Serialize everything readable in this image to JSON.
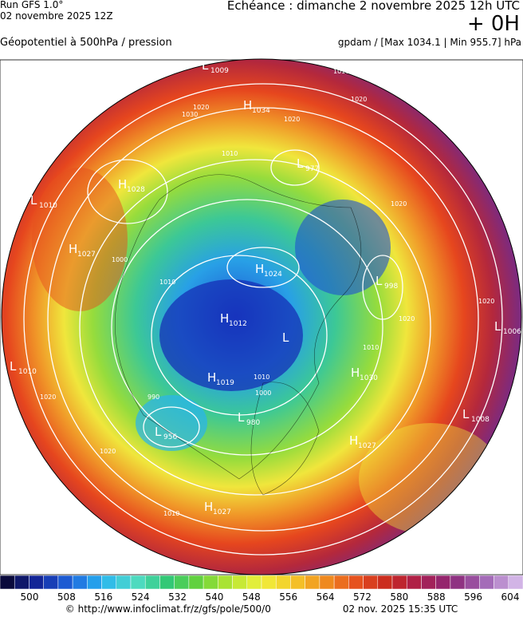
{
  "header": {
    "run": "Run GFS 1.0°",
    "date": "02 novembre 2025 12Z",
    "echeance": "Echéance : dimanche 2 novembre 2025 12h UTC",
    "offset": "+ 0H",
    "variable": "Géopotentiel à 500hPa / pression",
    "units": "gpdam / [Max 1034.1 | Min 955.7] hPa"
  },
  "pressure_centers": [
    {
      "type": "L",
      "value": 1009
    },
    {
      "type": "H",
      "value": 1034
    },
    {
      "type": "L",
      "value": 977
    },
    {
      "type": "H",
      "value": 1028
    },
    {
      "type": "L",
      "value": 1010
    },
    {
      "type": "H",
      "value": 1027
    },
    {
      "type": "H",
      "value": 1024
    },
    {
      "type": "L",
      "value": 998
    },
    {
      "type": "H",
      "value": 1012
    },
    {
      "type": "L"
    },
    {
      "type": "L",
      "value": 1006
    },
    {
      "type": "L",
      "value": 1010
    },
    {
      "type": "H",
      "value": 1030
    },
    {
      "type": "H",
      "value": 1019
    },
    {
      "type": "L",
      "value": 980
    },
    {
      "type": "L",
      "value": 956
    },
    {
      "type": "L",
      "value": 1008
    },
    {
      "type": "H",
      "value": 1027
    },
    {
      "type": "H",
      "value": 1027
    }
  ],
  "contour_labels": [
    1010,
    1020,
    1030,
    1020,
    1020,
    1010,
    1020,
    1000,
    1010,
    990,
    1000,
    1010,
    1020,
    1020,
    1010,
    1020,
    1010,
    1020
  ],
  "colorbar": {
    "ticks": [
      500,
      508,
      516,
      524,
      532,
      540,
      548,
      556,
      564,
      572,
      580,
      588,
      596,
      604
    ],
    "colors": [
      "#0a0a3c",
      "#1428a0",
      "#1e64dc",
      "#28b4f0",
      "#50dcc8",
      "#32c878",
      "#64d23c",
      "#b4e632",
      "#f0f03c",
      "#f5c828",
      "#f08c1e",
      "#e6501e",
      "#c8281e",
      "#aa1e50",
      "#8c2878",
      "#a064b4",
      "#d2b4e6"
    ]
  },
  "footer": {
    "url": "© http://www.infoclimat.fr/z/gfs/pole/500/0",
    "timestamp": "02 nov. 2025 15:35 UTC"
  }
}
